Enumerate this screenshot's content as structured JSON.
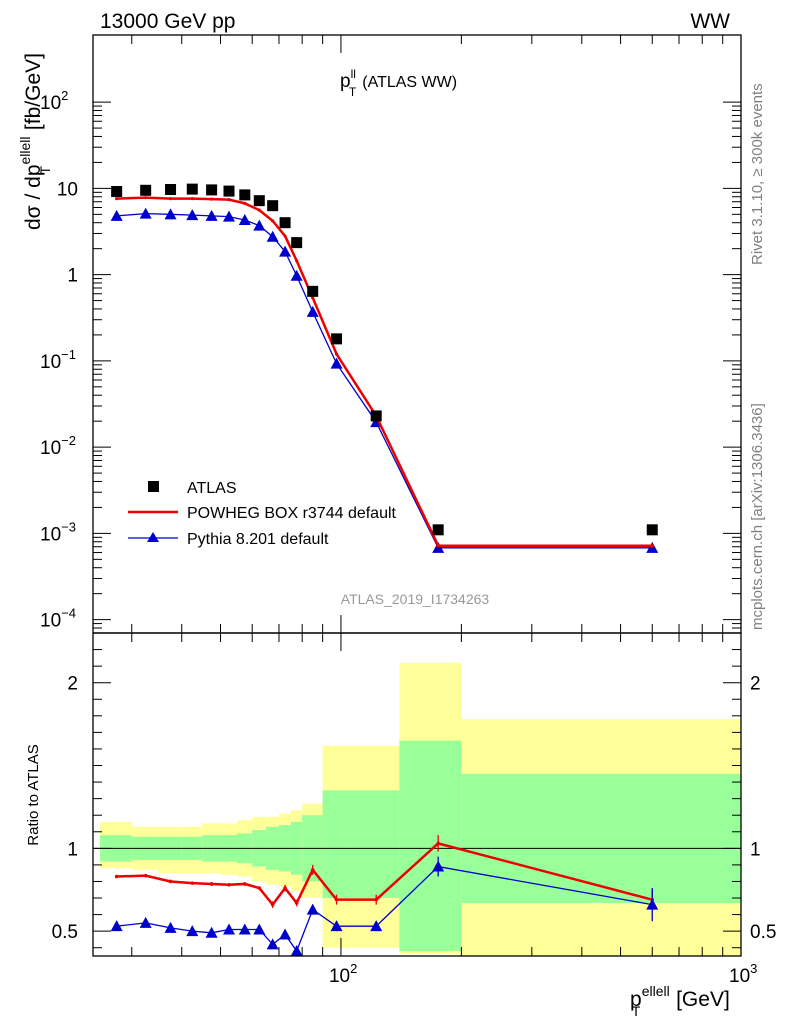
{
  "header": {
    "left": "13000 GeV pp",
    "right": "WW"
  },
  "side_labels": {
    "rivet": "Rivet 3.1.10, ≥ 300k events",
    "mcplots": "mcplots.cern.ch [arXiv:1306.3436]"
  },
  "analysis_id": "ATLAS_2019_I1734263",
  "colors": {
    "data": "#000000",
    "powheg": "#ee0000",
    "pythia": "#0000cc",
    "band_inner": "#99ff99",
    "band_outer": "#ffff99"
  },
  "chart_data": [
    {
      "type": "scatter",
      "panel": "main",
      "title": "(ATLAS WW)",
      "title_symbol": {
        "base": "p",
        "sup": "ll",
        "sub": "T"
      },
      "ylabel": {
        "pre": "dσ / dp",
        "sup": "ellell",
        "sub": "T",
        "post": " [fb/GeV]"
      },
      "yscale": "log",
      "xscale": "log",
      "ylim": [
        7e-05,
        600
      ],
      "xlim": [
        24,
        1000
      ],
      "y_ticks": [
        {
          "value": 100,
          "label": "10",
          "exp": "2"
        },
        {
          "value": 10,
          "label": "10",
          "exp": ""
        },
        {
          "value": 1,
          "label": "1",
          "exp": ""
        },
        {
          "value": 0.1,
          "label": "10",
          "exp": "−1"
        },
        {
          "value": 0.01,
          "label": "10",
          "exp": "−2"
        },
        {
          "value": 0.001,
          "label": "10",
          "exp": "−3"
        },
        {
          "value": 0.0001,
          "label": "10",
          "exp": "−4"
        }
      ],
      "legend_position": "lower-left",
      "series": [
        {
          "name": "ATLAS",
          "style": "square",
          "x": [
            27.5,
            32.5,
            37.5,
            42.5,
            47.5,
            52.5,
            57.5,
            62.5,
            67.5,
            72.5,
            77.5,
            85,
            97.5,
            122.5,
            175,
            600
          ],
          "y": [
            9.2,
            9.5,
            9.7,
            9.8,
            9.6,
            9.3,
            8.4,
            7.2,
            6.3,
            4.0,
            2.35,
            0.64,
            0.18,
            0.023,
            0.0011,
            0.0011
          ]
        },
        {
          "name": "POWHEG BOX r3744 default",
          "style": "line",
          "x": [
            27.5,
            32.5,
            37.5,
            42.5,
            47.5,
            52.5,
            57.5,
            62.5,
            67.5,
            72.5,
            77.5,
            85,
            97.5,
            122.5,
            175,
            600
          ],
          "y": [
            7.6,
            7.8,
            7.6,
            7.6,
            7.5,
            7.4,
            6.7,
            5.6,
            4.2,
            2.8,
            1.45,
            0.54,
            0.12,
            0.023,
            0.00072,
            0.00072
          ]
        },
        {
          "name": "Pythia 8.201 default",
          "style": "triangle",
          "x": [
            27.5,
            32.5,
            37.5,
            42.5,
            47.5,
            52.5,
            57.5,
            62.5,
            67.5,
            72.5,
            77.5,
            85,
            97.5,
            122.5,
            175,
            600
          ],
          "y": [
            4.8,
            5.1,
            5.0,
            4.9,
            4.8,
            4.7,
            4.3,
            3.7,
            2.75,
            1.85,
            0.97,
            0.37,
            0.093,
            0.0195,
            0.00068,
            0.00068
          ]
        }
      ]
    },
    {
      "type": "scatter",
      "panel": "ratio",
      "ylabel": "Ratio to ATLAS",
      "xlabel": {
        "pre": "p",
        "sup": "ellell",
        "sub": "T",
        "post": " [GeV]"
      },
      "xscale": "log",
      "xlim": [
        24,
        1000
      ],
      "ylim": [
        0.35,
        2.3
      ],
      "y_ticks": [
        {
          "value": 0.5,
          "label": "0.5"
        },
        {
          "value": 1,
          "label": "1"
        },
        {
          "value": 2,
          "label": "2"
        }
      ],
      "x_ticks": [
        {
          "value": 100,
          "label": "10",
          "exp": "2"
        },
        {
          "value": 1000,
          "label": "10",
          "exp": "3"
        }
      ],
      "bands": {
        "edges": [
          25,
          30,
          35,
          40,
          45,
          50,
          55,
          60,
          65,
          70,
          75,
          80,
          90,
          105,
          140,
          200,
          1000
        ],
        "inner_lo": [
          0.92,
          0.93,
          0.93,
          0.93,
          0.92,
          0.92,
          0.91,
          0.89,
          0.87,
          0.86,
          0.84,
          0.8,
          0.7,
          0.7,
          0.38,
          0.67
        ],
        "inner_hi": [
          1.08,
          1.07,
          1.07,
          1.07,
          1.08,
          1.08,
          1.09,
          1.11,
          1.13,
          1.14,
          1.16,
          1.2,
          1.35,
          1.35,
          1.65,
          1.45
        ],
        "outer_lo": [
          0.88,
          0.87,
          0.85,
          0.85,
          0.85,
          0.84,
          0.83,
          0.8,
          0.78,
          0.77,
          0.74,
          0.7,
          0.4,
          0.4,
          0.36,
          0.35
        ],
        "outer_hi": [
          1.16,
          1.13,
          1.13,
          1.13,
          1.15,
          1.15,
          1.17,
          1.19,
          1.19,
          1.21,
          1.23,
          1.27,
          1.62,
          1.62,
          2.12,
          1.78
        ]
      },
      "series": [
        {
          "name": "POWHEG BOX r3744 default",
          "x": [
            27.5,
            32.5,
            37.5,
            42.5,
            47.5,
            52.5,
            57.5,
            62.5,
            67.5,
            72.5,
            77.5,
            85,
            97.5,
            122.5,
            175,
            600
          ],
          "y": [
            0.83,
            0.835,
            0.8,
            0.79,
            0.785,
            0.78,
            0.785,
            0.76,
            0.66,
            0.76,
            0.67,
            0.87,
            0.69,
            0.69,
            1.03,
            0.69
          ],
          "err": [
            0.01,
            0.01,
            0.01,
            0.01,
            0.01,
            0.01,
            0.01,
            0.01,
            0.02,
            0.02,
            0.02,
            0.03,
            0.03,
            0.03,
            0.05,
            0.06
          ]
        },
        {
          "name": "Pythia 8.201 default",
          "x": [
            27.5,
            32.5,
            37.5,
            42.5,
            47.5,
            52.5,
            57.5,
            62.5,
            67.5,
            72.5,
            77.5,
            85,
            97.5,
            122.5,
            175,
            600
          ],
          "y": [
            0.53,
            0.55,
            0.52,
            0.5,
            0.49,
            0.51,
            0.51,
            0.51,
            0.42,
            0.48,
            0.38,
            0.63,
            0.53,
            0.53,
            0.89,
            0.66
          ],
          "err": [
            0.01,
            0.01,
            0.01,
            0.01,
            0.01,
            0.01,
            0.01,
            0.01,
            0.02,
            0.02,
            0.02,
            0.03,
            0.03,
            0.03,
            0.06,
            0.1
          ]
        }
      ],
      "reference_line": 1
    }
  ]
}
